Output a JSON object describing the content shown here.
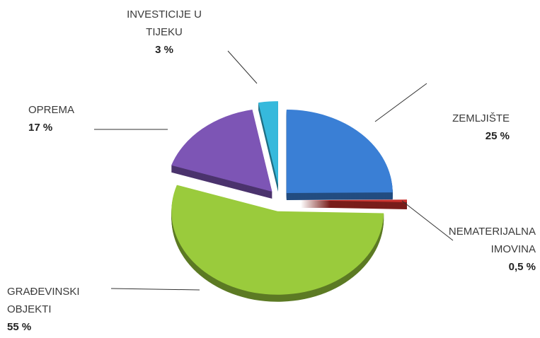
{
  "chart_data": {
    "type": "pie",
    "categories": [
      "ZEMLJIŠTE",
      "NEMATERIJALNA IMOVINA",
      "GRAĐEVINSKI OBJEKTI",
      "OPREMA",
      "INVESTICIJE U TIJEKU"
    ],
    "values": [
      25,
      0.5,
      55,
      17,
      3
    ],
    "value_labels": [
      "25 %",
      "0,5 %",
      "55 %",
      "17 %",
      "3 %"
    ],
    "colors": [
      "#3a7fd5",
      "#c9302c",
      "#9acb3c",
      "#7d55b5",
      "#36b9dc"
    ]
  }
}
